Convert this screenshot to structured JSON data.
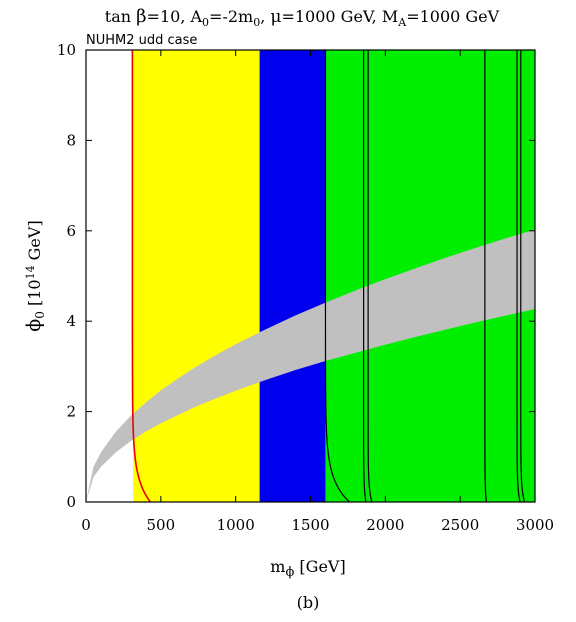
{
  "chart_data": {
    "type": "area",
    "title": {
      "pre": "tan ",
      "beta": "β",
      "p1": "=10, A",
      "s1": "0",
      "p2": "=-2m",
      "s2": "0",
      "p3": ", ",
      "mu": "μ",
      "p4": "=1000 GeV, M",
      "s3": "A",
      "p5": "=1000 GeV"
    },
    "subtitle": "NUHM2 udd case",
    "caption": "(b)",
    "xlabel": {
      "main": "m",
      "sub": "ϕ",
      "unit": " [GeV]"
    },
    "ylabel": {
      "main": "ϕ",
      "sub": "0",
      "unit_pre": " [10",
      "unit_sup": "14",
      "unit_post": " GeV]"
    },
    "xlim": [
      0,
      3000
    ],
    "ylim": [
      0,
      10
    ],
    "xticks": [
      "0",
      "500",
      "1000",
      "1500",
      "2000",
      "2500",
      "3000"
    ],
    "yticks": [
      "0",
      "2",
      "4",
      "6",
      "8",
      "10"
    ],
    "colors": {
      "yellow": "#ffff00",
      "blue": "#0000ee",
      "green": "#00ee00",
      "gray": "#c0c0c0",
      "red": "#ee0000",
      "black": "#000000"
    },
    "regions": [
      {
        "color": "yellow",
        "x_start": 315,
        "x_end": 1160
      },
      {
        "color": "blue",
        "x_start": 1160,
        "x_end": 1600
      },
      {
        "color": "green",
        "x_start": 1600,
        "x_end": 3000
      }
    ],
    "gray_band": {
      "x": [
        0,
        50,
        100,
        200,
        300,
        400,
        500,
        600,
        700,
        800,
        900,
        1000,
        1200,
        1400,
        1600,
        1800,
        2000,
        2200,
        2400,
        2600,
        2800,
        3000
      ],
      "lower": [
        0,
        0.55,
        0.78,
        1.1,
        1.35,
        1.56,
        1.74,
        1.9,
        2.06,
        2.2,
        2.33,
        2.46,
        2.7,
        2.92,
        3.12,
        3.3,
        3.48,
        3.65,
        3.81,
        3.97,
        4.12,
        4.27
      ],
      "upper": [
        0,
        0.78,
        1.1,
        1.56,
        1.91,
        2.2,
        2.47,
        2.7,
        2.92,
        3.12,
        3.31,
        3.49,
        3.82,
        4.13,
        4.41,
        4.68,
        4.93,
        5.17,
        5.4,
        5.62,
        5.83,
        6.03
      ]
    },
    "edge_curves": [
      {
        "color": "red",
        "x_asym": 310,
        "x_base": 430,
        "decay": 0.52
      },
      {
        "color": "black",
        "x_asym": 1600,
        "x_base": 1760,
        "decay": 0.5
      },
      {
        "color": "black",
        "x_asym": 1855,
        "x_base": 1870,
        "decay": 0.3
      },
      {
        "color": "black",
        "x_asym": 1885,
        "x_base": 1910,
        "decay": 0.3
      },
      {
        "color": "black",
        "x_asym": 2665,
        "x_base": 2675,
        "decay": 0.3
      },
      {
        "color": "black",
        "x_asym": 2880,
        "x_base": 2900,
        "decay": 0.3
      },
      {
        "color": "black",
        "x_asym": 2905,
        "x_base": 2930,
        "decay": 0.3
      }
    ]
  }
}
